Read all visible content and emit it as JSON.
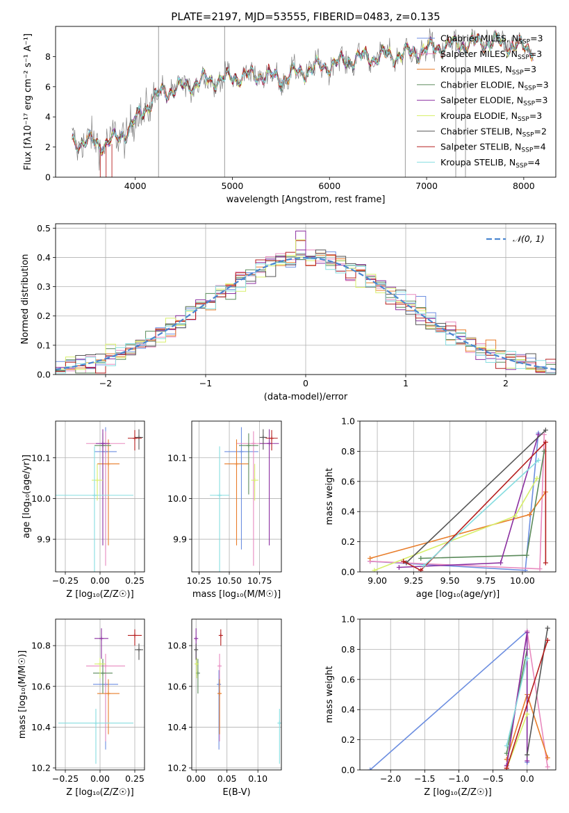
{
  "figure": {
    "title": "PLATE=2197, MJD=53555, FIBERID=0483, z=0.135"
  },
  "colors": {
    "chabrier_miles": "#6c8ee0",
    "salpeter_miles": "#e88abf",
    "kroupa_miles": "#e87d2a",
    "chabrier_elodie": "#5a8a5a",
    "salpeter_elodie": "#8b2fa0",
    "kroupa_elodie": "#d7ef6a",
    "chabrier_stelib": "#555555",
    "salpeter_stelib": "#b51d1d",
    "kroupa_stelib": "#86dde0",
    "data": "#808080",
    "normal_curve": "#4a86d0"
  },
  "chart_data": [
    {
      "id": "spectrum",
      "type": "line",
      "title": "PLATE=2197, MJD=53555, FIBERID=0483, z=0.135",
      "xlabel": "wavelength [Angstrom, rest frame]",
      "ylabel": "Flux [fλ10⁻¹⁷ erg cm⁻² s⁻¹ A⁻¹]",
      "xlim": [
        3180,
        8330
      ],
      "ylim": [
        0,
        10
      ],
      "xticks": [
        4000,
        5000,
        6000,
        7000,
        8000
      ],
      "yticks": [
        0,
        2,
        4,
        6,
        8
      ],
      "grid": false,
      "legend_placement": "top-right",
      "legend": [
        {
          "label": "Chabrier MILES, N",
          "sub": "SSP",
          "tail": "=3",
          "color_key": "chabrier_miles"
        },
        {
          "label": "Salpeter MILES, N",
          "sub": "SSP",
          "tail": "=3",
          "color_key": "salpeter_miles"
        },
        {
          "label": "Kroupa MILES, N",
          "sub": "SSP",
          "tail": "=3",
          "color_key": "kroupa_miles"
        },
        {
          "label": "Chabrier ELODIE, N",
          "sub": "SSP",
          "tail": "=3",
          "color_key": "chabrier_elodie"
        },
        {
          "label": "Salpeter ELODIE, N",
          "sub": "SSP",
          "tail": "=3",
          "color_key": "salpeter_elodie"
        },
        {
          "label": "Kroupa ELODIE, N",
          "sub": "SSP",
          "tail": "=3",
          "color_key": "kroupa_elodie"
        },
        {
          "label": "Chabrier STELIB, N",
          "sub": "SSP",
          "tail": "=2",
          "color_key": "chabrier_stelib"
        },
        {
          "label": "Salpeter STELIB, N",
          "sub": "SSP",
          "tail": "=4",
          "color_key": "salpeter_stelib"
        },
        {
          "label": "Kroupa STELIB, N",
          "sub": "SSP",
          "tail": "=4",
          "color_key": "kroupa_stelib"
        }
      ],
      "continuum_x": [
        3350,
        3500,
        3650,
        3800,
        3950,
        4050,
        4150,
        4300,
        4500,
        4700,
        4900,
        5100,
        5300,
        5500,
        5700,
        5900,
        6100,
        6300,
        6500,
        6700,
        6900,
        7100,
        7300,
        7500,
        7700,
        7900,
        8100
      ],
      "continuum_y": [
        2.3,
        2.4,
        2.2,
        2.5,
        3.3,
        4.1,
        5.0,
        5.7,
        6.0,
        6.4,
        6.5,
        6.7,
        6.8,
        6.5,
        7.0,
        7.3,
        7.6,
        7.9,
        8.0,
        8.1,
        8.3,
        8.6,
        8.8,
        8.9,
        9.0,
        8.7,
        8.5
      ],
      "data_spikes": [
        {
          "x": 4240,
          "y": [
            0,
            10
          ]
        },
        {
          "x": 4920,
          "y": [
            0,
            10
          ]
        },
        {
          "x": 6780,
          "y": [
            0,
            8.5
          ]
        },
        {
          "x": 7300,
          "y": [
            0,
            9.8
          ]
        },
        {
          "x": 7400,
          "y": [
            0,
            9.0
          ]
        }
      ]
    },
    {
      "id": "residuals",
      "type": "histogram",
      "xlabel": "(data-model)/error",
      "ylabel": "Normed distribution",
      "xlim": [
        -2.5,
        2.5
      ],
      "ylim": [
        0,
        0.515
      ],
      "xticks": [
        -2,
        -1,
        0,
        1,
        2
      ],
      "yticks": [
        0.0,
        0.1,
        0.2,
        0.3,
        0.4,
        0.5
      ],
      "grid": true,
      "legend_placement": "top-right",
      "legend_label": "𝒩(0, 1)",
      "bin_width": 0.1
    },
    {
      "id": "age-vs-z",
      "type": "scatter",
      "xlabel": "Z [log₁₀(Z/Z☉)]",
      "ylabel": "age  [log₁₀(age/yr)]",
      "xlim": [
        -0.32,
        0.32
      ],
      "ylim": [
        9.82,
        10.19
      ],
      "xticks": [
        -0.25,
        0.0,
        0.25
      ],
      "yticks": [
        9.9,
        10.0,
        10.1
      ],
      "grid": true,
      "points": [
        {
          "series": "chabrier_miles",
          "x": 0.04,
          "y": 10.115,
          "xerr": 0.08,
          "yerr": [
            0.24,
            0.06
          ]
        },
        {
          "series": "salpeter_miles",
          "x": 0.04,
          "y": 10.135,
          "xerr": 0.14,
          "yerr": [
            0.3,
            0.03
          ]
        },
        {
          "series": "kroupa_miles",
          "x": 0.06,
          "y": 10.085,
          "xerr": 0.08,
          "yerr": [
            0.2,
            0.06
          ]
        },
        {
          "series": "chabrier_elodie",
          "x": 0.02,
          "y": 10.13,
          "xerr": 0.06,
          "yerr": [
            0.12,
            0.03
          ]
        },
        {
          "series": "salpeter_elodie",
          "x": 0.02,
          "y": 10.135,
          "xerr": 0.05,
          "yerr": [
            0.25,
            0.035
          ]
        },
        {
          "series": "kroupa_elodie",
          "x": -0.02,
          "y": 10.045,
          "xerr": 0.04,
          "yerr": [
            0.05,
            0.04
          ]
        },
        {
          "series": "chabrier_stelib",
          "x": 0.28,
          "y": 10.15,
          "xerr": 0.03,
          "yerr": [
            0.03,
            0.02
          ]
        },
        {
          "series": "salpeter_stelib",
          "x": 0.25,
          "y": 10.148,
          "xerr": 0.05,
          "yerr": [
            0.03,
            0.02
          ]
        },
        {
          "series": "kroupa_stelib",
          "x": -0.04,
          "y": 10.008,
          "xerr": 0.28,
          "yerr": [
            0.19,
            0.12
          ]
        }
      ]
    },
    {
      "id": "age-vs-mass",
      "type": "scatter",
      "xlabel": "mass [log₁₀(M/M☉)]",
      "ylabel": "",
      "xlim": [
        10.19,
        10.93
      ],
      "ylim": [
        9.82,
        10.19
      ],
      "xticks": [
        10.25,
        10.5,
        10.75
      ],
      "yticks": [
        9.9,
        10.0,
        10.1
      ],
      "grid": true,
      "points": [
        {
          "series": "chabrier_miles",
          "x": 10.6,
          "y": 10.115,
          "xerr": 0.14,
          "yerr": [
            0.24,
            0.06
          ]
        },
        {
          "series": "salpeter_miles",
          "x": 10.7,
          "y": 10.135,
          "xerr": 0.14,
          "yerr": [
            0.3,
            0.03
          ]
        },
        {
          "series": "kroupa_miles",
          "x": 10.56,
          "y": 10.085,
          "xerr": 0.1,
          "yerr": [
            0.2,
            0.06
          ]
        },
        {
          "series": "chabrier_elodie",
          "x": 10.66,
          "y": 10.13,
          "xerr": 0.08,
          "yerr": [
            0.12,
            0.03
          ]
        },
        {
          "series": "salpeter_elodie",
          "x": 10.83,
          "y": 10.135,
          "xerr": 0.08,
          "yerr": [
            0.25,
            0.035
          ]
        },
        {
          "series": "kroupa_elodie",
          "x": 10.71,
          "y": 10.045,
          "xerr": 0.03,
          "yerr": [
            0.05,
            0.04
          ]
        },
        {
          "series": "chabrier_stelib",
          "x": 10.78,
          "y": 10.15,
          "xerr": 0.03,
          "yerr": [
            0.03,
            0.02
          ]
        },
        {
          "series": "salpeter_stelib",
          "x": 10.85,
          "y": 10.148,
          "xerr": 0.05,
          "yerr": [
            0.03,
            0.02
          ]
        },
        {
          "series": "kroupa_stelib",
          "x": 10.42,
          "y": 10.008,
          "xerr": 0.08,
          "yerr": [
            0.19,
            0.12
          ]
        }
      ]
    },
    {
      "id": "weight-vs-age",
      "type": "line",
      "xlabel": "age  [log₁₀(age/yr)]",
      "ylabel": "mass weight",
      "xlim": [
        8.88,
        10.23
      ],
      "ylim": [
        0.0,
        1.0
      ],
      "xticks": [
        9.0,
        9.25,
        9.5,
        9.75,
        10.0
      ],
      "yticks": [
        0.0,
        0.2,
        0.4,
        0.6,
        0.8,
        1.0
      ],
      "grid": true,
      "series": [
        {
          "name": "chabrier_miles",
          "x": [
            8.95,
            10.02,
            10.11
          ],
          "y": [
            0.07,
            0.01,
            0.92
          ]
        },
        {
          "name": "salpeter_miles",
          "x": [
            8.95,
            10.12,
            10.15
          ],
          "y": [
            0.07,
            0.02,
            0.91
          ]
        },
        {
          "name": "kroupa_miles",
          "x": [
            8.95,
            10.05,
            10.16
          ],
          "y": [
            0.09,
            0.38,
            0.53
          ]
        },
        {
          "name": "chabrier_elodie",
          "x": [
            9.3,
            10.03,
            10.15
          ],
          "y": [
            0.09,
            0.11,
            0.8
          ]
        },
        {
          "name": "salpeter_elodie",
          "x": [
            9.15,
            9.85,
            10.11
          ],
          "y": [
            0.03,
            0.06,
            0.91
          ]
        },
        {
          "name": "kroupa_elodie",
          "x": [
            8.98,
            9.95,
            10.1
          ],
          "y": [
            0.01,
            0.37,
            0.62
          ]
        },
        {
          "name": "chabrier_stelib",
          "x": [
            9.2,
            10.16
          ],
          "y": [
            0.06,
            0.94
          ]
        },
        {
          "name": "salpeter_stelib",
          "x": [
            9.18,
            9.3,
            10.16,
            10.16
          ],
          "y": [
            0.07,
            0.01,
            0.86,
            0.06
          ]
        },
        {
          "name": "kroupa_stelib",
          "x": [
            9.32,
            10.11
          ],
          "y": [
            0.04,
            0.74
          ]
        }
      ]
    },
    {
      "id": "mass-vs-z",
      "type": "scatter",
      "xlabel": "Z [log₁₀(Z/Z☉)]",
      "ylabel": "mass [log₁₀(M/M☉)]",
      "xlim": [
        -0.32,
        0.32
      ],
      "ylim": [
        10.19,
        10.93
      ],
      "xticks": [
        -0.25,
        0.0,
        0.25
      ],
      "yticks": [
        10.2,
        10.4,
        10.6,
        10.8
      ],
      "grid": true,
      "points": [
        {
          "series": "chabrier_miles",
          "x": 0.04,
          "y": 10.61,
          "xerr": 0.09,
          "yerr": [
            0.32,
            0.07
          ]
        },
        {
          "series": "salpeter_miles",
          "x": 0.04,
          "y": 10.7,
          "xerr": 0.14,
          "yerr": [
            0.37,
            0.06
          ]
        },
        {
          "series": "kroupa_miles",
          "x": 0.06,
          "y": 10.565,
          "xerr": 0.08,
          "yerr": [
            0.2,
            0.07
          ]
        },
        {
          "series": "chabrier_elodie",
          "x": 0.02,
          "y": 10.665,
          "xerr": 0.07,
          "yerr": [
            0.1,
            0.07
          ]
        },
        {
          "series": "salpeter_elodie",
          "x": 0.01,
          "y": 10.835,
          "xerr": 0.05,
          "yerr": [
            0.1,
            0.05
          ]
        },
        {
          "series": "kroupa_elodie",
          "x": 0.0,
          "y": 10.71,
          "xerr": 0.04,
          "yerr": [
            0.07,
            0.03
          ]
        },
        {
          "series": "chabrier_stelib",
          "x": 0.28,
          "y": 10.78,
          "xerr": 0.03,
          "yerr": [
            0.05,
            0.03
          ]
        },
        {
          "series": "salpeter_stelib",
          "x": 0.25,
          "y": 10.85,
          "xerr": 0.05,
          "yerr": [
            0.05,
            0.03
          ]
        },
        {
          "series": "kroupa_stelib",
          "x": -0.03,
          "y": 10.42,
          "xerr": 0.27,
          "yerr": [
            0.2,
            0.07
          ]
        }
      ]
    },
    {
      "id": "mass-vs-ebv",
      "type": "scatter",
      "xlabel": "E(B-V)",
      "ylabel": "",
      "xlim": [
        -0.007,
        0.138
      ],
      "ylim": [
        10.19,
        10.93
      ],
      "xticks": [
        0.0,
        0.05,
        0.1
      ],
      "yticks": [
        10.2,
        10.4,
        10.6,
        10.8
      ],
      "grid": true,
      "points": [
        {
          "series": "chabrier_miles",
          "x": 0.037,
          "y": 10.61,
          "yerr": [
            0.32,
            0.07
          ]
        },
        {
          "series": "salpeter_miles",
          "x": 0.038,
          "y": 10.7,
          "yerr": [
            0.37,
            0.06
          ]
        },
        {
          "series": "kroupa_miles",
          "x": 0.038,
          "y": 10.565,
          "yerr": [
            0.2,
            0.07
          ]
        },
        {
          "series": "chabrier_elodie",
          "x": 0.003,
          "y": 10.665,
          "yerr": [
            0.1,
            0.07
          ]
        },
        {
          "series": "salpeter_elodie",
          "x": 0.0,
          "y": 10.835,
          "yerr": [
            0.1,
            0.05
          ]
        },
        {
          "series": "kroupa_elodie",
          "x": 0.001,
          "y": 10.71,
          "yerr": [
            0.07,
            0.03
          ]
        },
        {
          "series": "chabrier_stelib",
          "x": 0.0,
          "y": 10.78,
          "yerr": [
            0.05,
            0.03
          ]
        },
        {
          "series": "salpeter_stelib",
          "x": 0.04,
          "y": 10.85,
          "yerr": [
            0.05,
            0.03
          ]
        },
        {
          "series": "kroupa_stelib",
          "x": 0.135,
          "y": 10.42,
          "yerr": [
            0.2,
            0.07
          ]
        }
      ]
    },
    {
      "id": "weight-vs-z",
      "type": "line",
      "xlabel": "Z [log₁₀(Z/Z☉)]",
      "ylabel": "mass weight",
      "xlim": [
        -2.45,
        0.42
      ],
      "ylim": [
        0.0,
        1.0
      ],
      "xticks": [
        -2.0,
        -1.5,
        -1.0,
        -0.5,
        0.0
      ],
      "yticks": [
        0.0,
        0.2,
        0.4,
        0.6,
        0.8,
        1.0
      ],
      "grid": true,
      "series": [
        {
          "name": "chabrier_miles",
          "x": [
            -2.3,
            0.0,
            0.0
          ],
          "y": [
            0.0,
            0.92,
            0.05
          ]
        },
        {
          "name": "salpeter_miles",
          "x": [
            -0.3,
            0.0,
            0.3
          ],
          "y": [
            0.02,
            0.92,
            0.02
          ]
        },
        {
          "name": "kroupa_miles",
          "x": [
            -0.3,
            0.0,
            0.3
          ],
          "y": [
            0.07,
            0.5,
            0.08
          ]
        },
        {
          "name": "chabrier_elodie",
          "x": [
            -0.3,
            0.0
          ],
          "y": [
            0.11,
            0.8
          ]
        },
        {
          "name": "salpeter_elodie",
          "x": [
            -0.3,
            0.0,
            0.0
          ],
          "y": [
            0.03,
            0.91,
            0.06
          ]
        },
        {
          "name": "kroupa_elodie",
          "x": [
            -0.3,
            0.0
          ],
          "y": [
            0.01,
            0.37
          ]
        },
        {
          "name": "chabrier_stelib",
          "x": [
            0.0,
            0.3
          ],
          "y": [
            0.1,
            0.94
          ]
        },
        {
          "name": "salpeter_stelib",
          "x": [
            -0.3,
            0.3
          ],
          "y": [
            0.01,
            0.86
          ]
        },
        {
          "name": "kroupa_stelib",
          "x": [
            -0.3,
            0.0
          ],
          "y": [
            0.16,
            0.74
          ]
        }
      ]
    }
  ]
}
